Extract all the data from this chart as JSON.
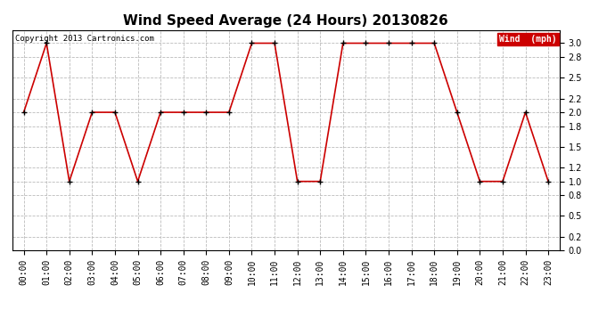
{
  "title": "Wind Speed Average (24 Hours) 20130826",
  "copyright": "Copyright 2013 Cartronics.com",
  "legend_label": "Wind  (mph)",
  "x_labels": [
    "00:00",
    "01:00",
    "02:00",
    "03:00",
    "04:00",
    "05:00",
    "06:00",
    "07:00",
    "08:00",
    "09:00",
    "10:00",
    "11:00",
    "12:00",
    "13:00",
    "14:00",
    "15:00",
    "16:00",
    "17:00",
    "18:00",
    "19:00",
    "20:00",
    "21:00",
    "22:00",
    "23:00"
  ],
  "y_values": [
    2.0,
    3.0,
    1.0,
    2.0,
    2.0,
    1.0,
    2.0,
    2.0,
    2.0,
    2.0,
    3.0,
    3.0,
    1.0,
    1.0,
    3.0,
    3.0,
    3.0,
    3.0,
    3.0,
    2.0,
    1.0,
    1.0,
    2.0,
    1.0
  ],
  "line_color": "#cc0000",
  "marker_color": "#000000",
  "bg_color": "#ffffff",
  "plot_bg_color": "#ffffff",
  "grid_color": "#bbbbbb",
  "ylim": [
    0.0,
    3.19
  ],
  "yticks": [
    0.0,
    0.2,
    0.5,
    0.8,
    1.0,
    1.2,
    1.5,
    1.8,
    2.0,
    2.2,
    2.5,
    2.8,
    3.0
  ],
  "title_fontsize": 11,
  "tick_fontsize": 7,
  "copyright_fontsize": 6.5
}
